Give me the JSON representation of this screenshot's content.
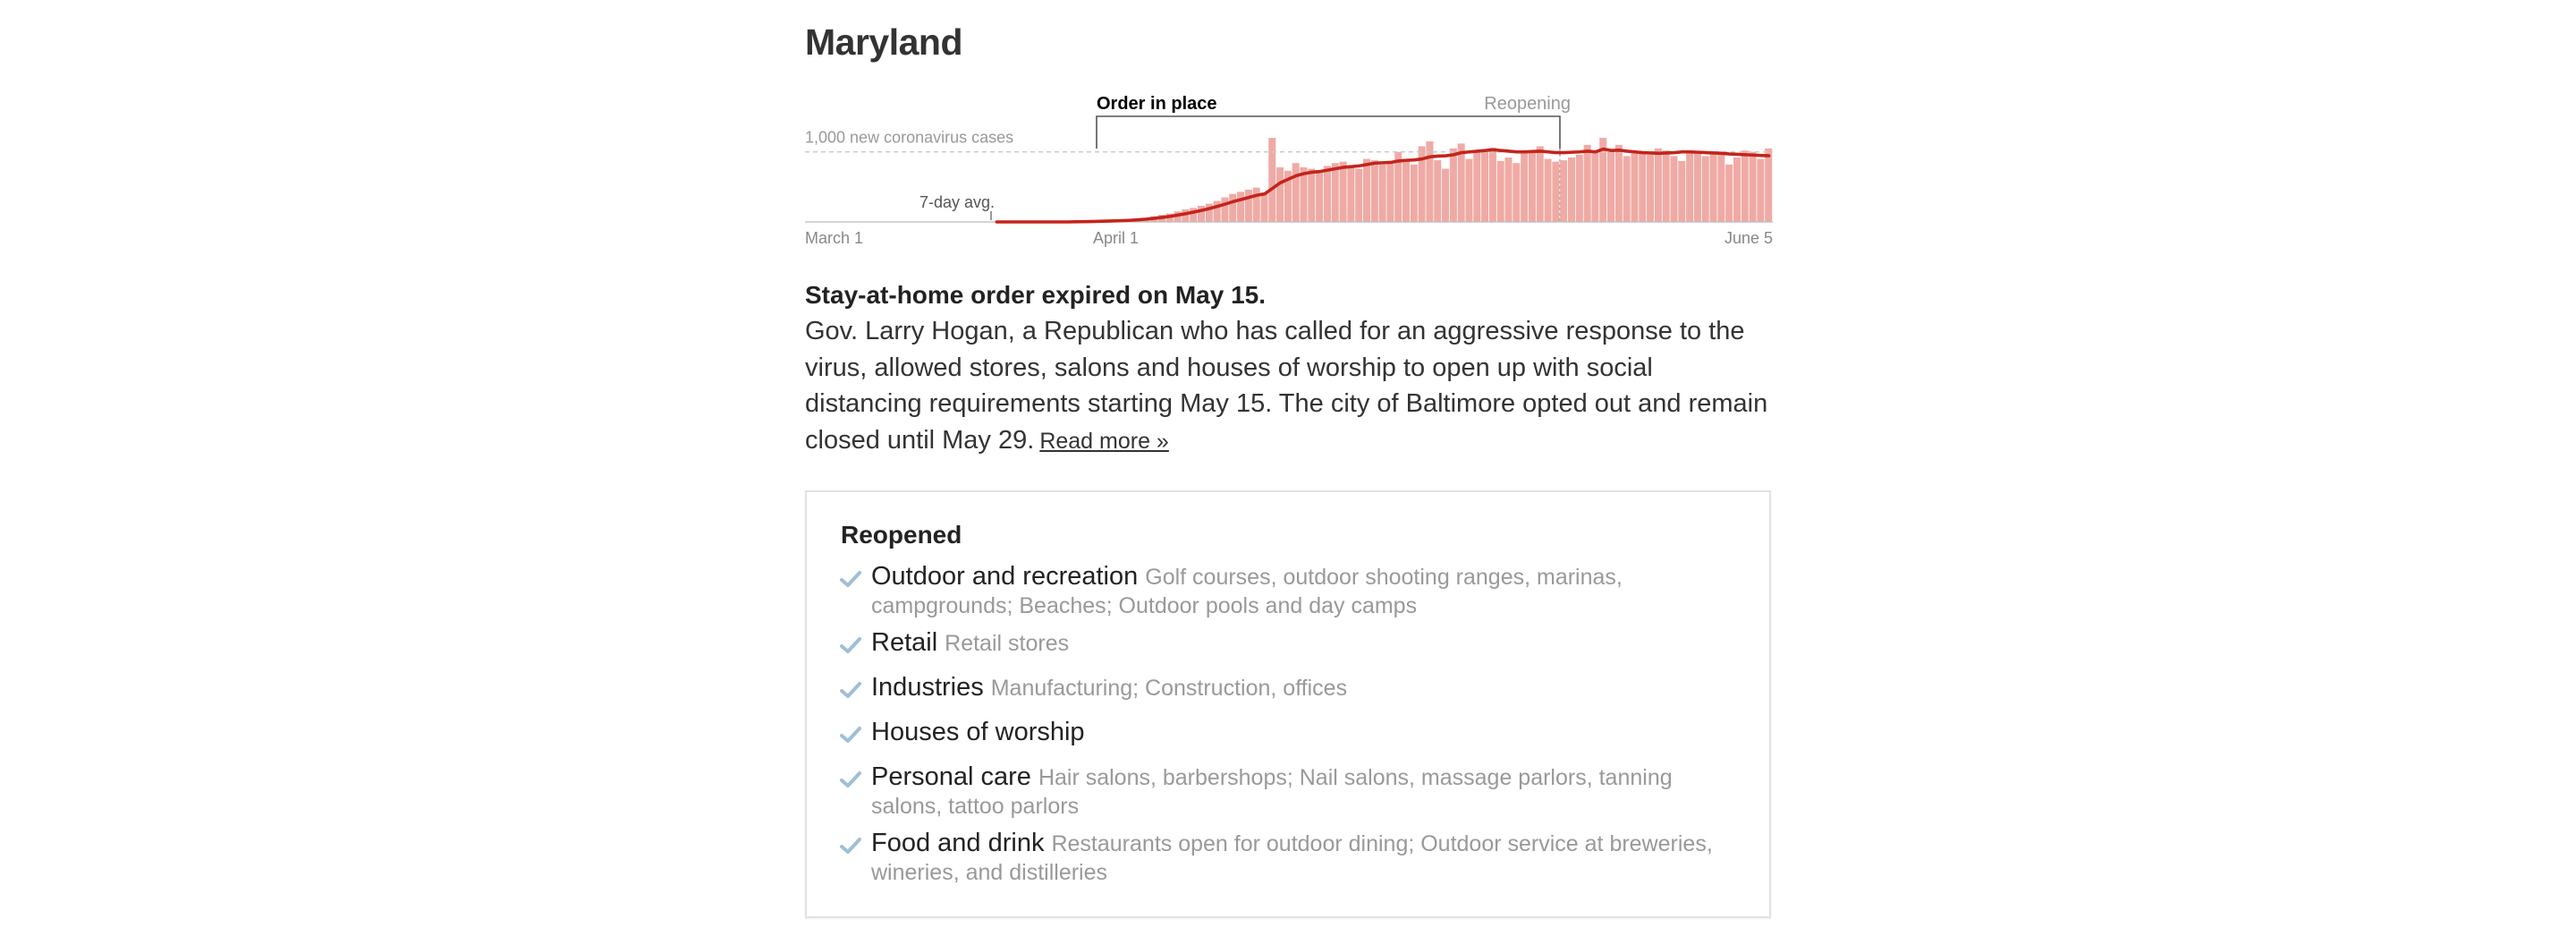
{
  "state": "Maryland",
  "phases": [
    {
      "label": "Order in place",
      "start": "March 30",
      "end": "May 15",
      "emphasis": true
    },
    {
      "label": "Reopening",
      "start": "May 15",
      "end": "May 15",
      "emphasis": false
    }
  ],
  "chart_data": {
    "type": "bar",
    "annotations": {
      "reference_label": "1,000 new coronavirus cases",
      "reference_value": 1000,
      "avg_label": "7-day avg."
    },
    "x_ticks": [
      "March 1",
      "April 1",
      "June 5"
    ],
    "ylim": [
      0,
      1150
    ],
    "grid": false,
    "series": [
      {
        "values": [
          0,
          0,
          0,
          0,
          0,
          0,
          0,
          0,
          0,
          0,
          0,
          0,
          0,
          0,
          0,
          0,
          0,
          0,
          0,
          0,
          0,
          0,
          0,
          0,
          0,
          0,
          0,
          0,
          0,
          0,
          0,
          0,
          0,
          0,
          0,
          0,
          0,
          0,
          0,
          0,
          0,
          0,
          0,
          0,
          0,
          0,
          0,
          0,
          0,
          0,
          0,
          0,
          0,
          0,
          0,
          0,
          0,
          0,
          0,
          0,
          0,
          0,
          0,
          0,
          0,
          0,
          0,
          0,
          0,
          0,
          0,
          0,
          0,
          0,
          0,
          0,
          0,
          0,
          0,
          0,
          0,
          0,
          0,
          0,
          0,
          0,
          0,
          0,
          0,
          0,
          0,
          0,
          0,
          0,
          0,
          0,
          0,
          0,
          0
        ],
        "bars": [
          2,
          0,
          0,
          0,
          0,
          1,
          1,
          2,
          3,
          4,
          6,
          8,
          10,
          15,
          17,
          20,
          25,
          30,
          45,
          60,
          80,
          100,
          120,
          150,
          180,
          200,
          230,
          260,
          300,
          350,
          400,
          430,
          460,
          490,
          420,
          1200,
          780,
          730,
          840,
          780,
          760,
          740,
          800,
          840,
          860,
          800,
          760,
          900,
          880,
          820,
          830,
          1000,
          900,
          820,
          1080,
          1150,
          880,
          760,
          1050,
          1120,
          900,
          1000,
          1000,
          1060,
          870,
          920,
          840,
          1000,
          1020,
          1080,
          900,
          860,
          880,
          920,
          960,
          1100,
          1020,
          1200,
          1000,
          1100,
          940,
          980,
          1000,
          960,
          1050,
          1020,
          940,
          870,
          1000,
          980,
          940,
          980,
          1000,
          820,
          920,
          1020,
          1000,
          900,
          1050
        ]
      }
    ],
    "avg_series": {
      "values": [
        0,
        0,
        0,
        0,
        0,
        0,
        0,
        0,
        0,
        0,
        2,
        4,
        6,
        9,
        12,
        15,
        19,
        24,
        31,
        40,
        52,
        65,
        80,
        98,
        118,
        140,
        165,
        192,
        222,
        255,
        290,
        320,
        350,
        380,
        400,
        480,
        560,
        610,
        660,
        690,
        710,
        720,
        740,
        760,
        780,
        790,
        800,
        820,
        840,
        845,
        850,
        870,
        880,
        885,
        900,
        930,
        940,
        945,
        960,
        990,
        1000,
        1010,
        1020,
        1030,
        1020,
        1010,
        1000,
        1000,
        1005,
        1010,
        1000,
        990,
        990,
        995,
        1000,
        1010,
        1000,
        1040,
        1020,
        1025,
        1010,
        1000,
        990,
        985,
        980,
        985,
        990,
        1000,
        1000,
        995,
        990,
        985,
        980,
        970,
        965,
        960,
        955,
        950,
        945
      ]
    }
  },
  "summary": {
    "headline": "Stay-at-home order expired on May 15.",
    "body": "Gov. Larry Hogan, a Republican who has called for an aggressive response to the virus, allowed stores, salons and houses of worship to open up with social distancing requirements starting May 15. The city of Baltimore opted out and remain closed until May 29.",
    "read_more": "Read more »"
  },
  "reopened": {
    "title": "Reopened",
    "check_color": "#9fbfd6",
    "categories": [
      {
        "name": "Outdoor and recreation",
        "items": "Golf courses, outdoor shooting ranges, marinas, campgrounds; Beaches; Outdoor pools and day camps"
      },
      {
        "name": "Retail",
        "items": "Retail stores"
      },
      {
        "name": "Industries",
        "items": "Manufacturing; Construction, offices"
      },
      {
        "name": "Houses of worship",
        "items": ""
      },
      {
        "name": "Personal care",
        "items": "Hair salons, barbershops; Nail salons, massage parlors, tanning salons, tattoo parlors"
      },
      {
        "name": "Food and drink",
        "items": "Restaurants open for outdoor dining; Outdoor service at breweries, wineries, and distilleries"
      }
    ]
  },
  "colors": {
    "bar": "#f0aaa5",
    "avg_line": "#c4241c",
    "text": "#333333",
    "muted": "#999999"
  }
}
